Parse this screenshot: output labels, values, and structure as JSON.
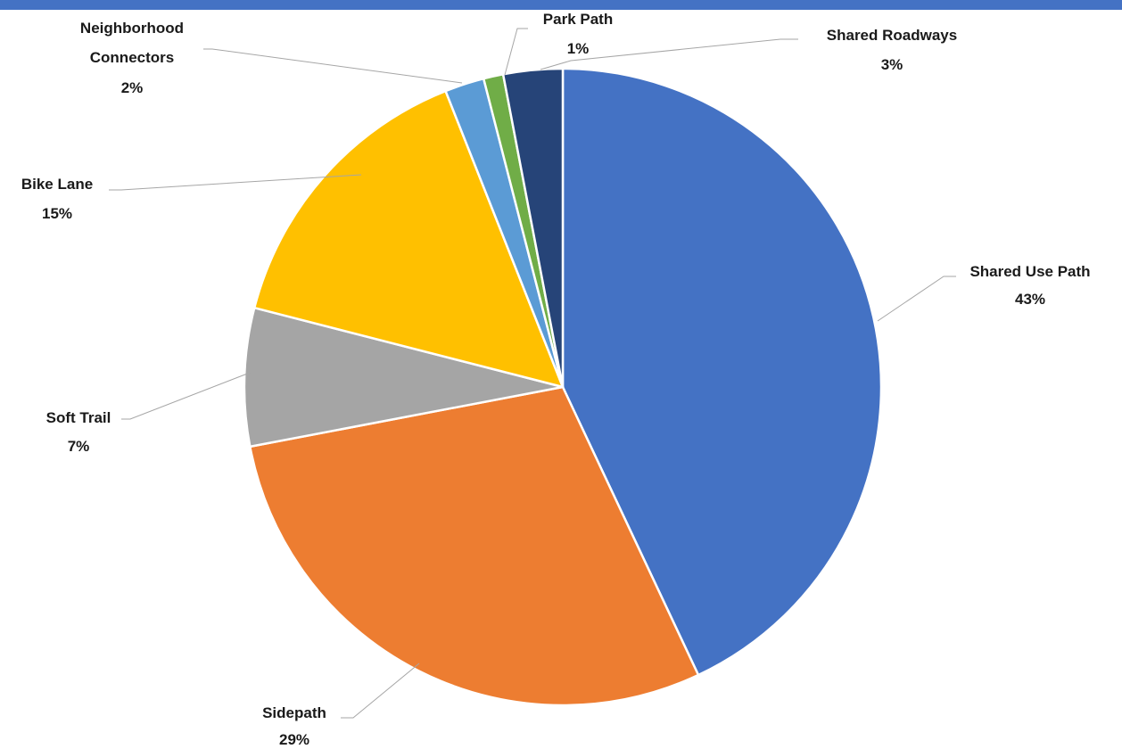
{
  "chart_data": {
    "type": "pie",
    "title": "",
    "start_angle_deg": 0,
    "direction": "clockwise",
    "slices": [
      {
        "name": "Shared Use Path",
        "value": 43,
        "label": "43%",
        "color": "#4472c4"
      },
      {
        "name": "Sidepath",
        "value": 29,
        "label": "29%",
        "color": "#ed7d31"
      },
      {
        "name": "Soft Trail",
        "value": 7,
        "label": "7%",
        "color": "#a5a5a5"
      },
      {
        "name": "Bike Lane",
        "value": 15,
        "label": "15%",
        "color": "#ffc000"
      },
      {
        "name": "Neighborhood Connectors",
        "value": 2,
        "label": "2%",
        "color": "#5b9bd5"
      },
      {
        "name": "Park Path",
        "value": 1,
        "label": "1%",
        "color": "#70ad47"
      },
      {
        "name": "Shared Roadways",
        "value": 3,
        "label": "3%",
        "color": "#264478"
      }
    ],
    "legend": "none",
    "data_labels": "outside with leader lines"
  },
  "colors": {
    "top_bar": "#4472c4",
    "leader_line": "#a6a6a6"
  }
}
